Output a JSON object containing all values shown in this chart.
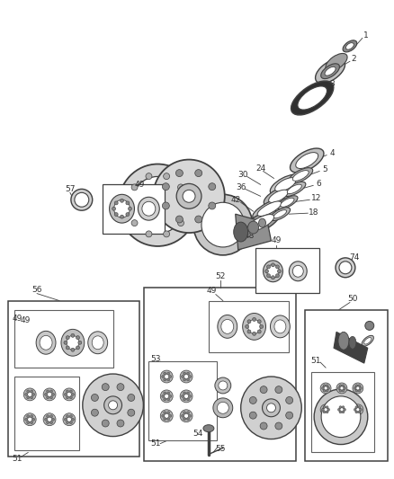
{
  "bg_color": "#ffffff",
  "fig_width": 4.38,
  "fig_height": 5.33,
  "dpi": 100,
  "line_color": "#404040",
  "text_color": "#303030",
  "gray_dark": "#404040",
  "gray_mid": "#808080",
  "gray_light": "#c0c0c0",
  "gray_very_dark": "#202020"
}
